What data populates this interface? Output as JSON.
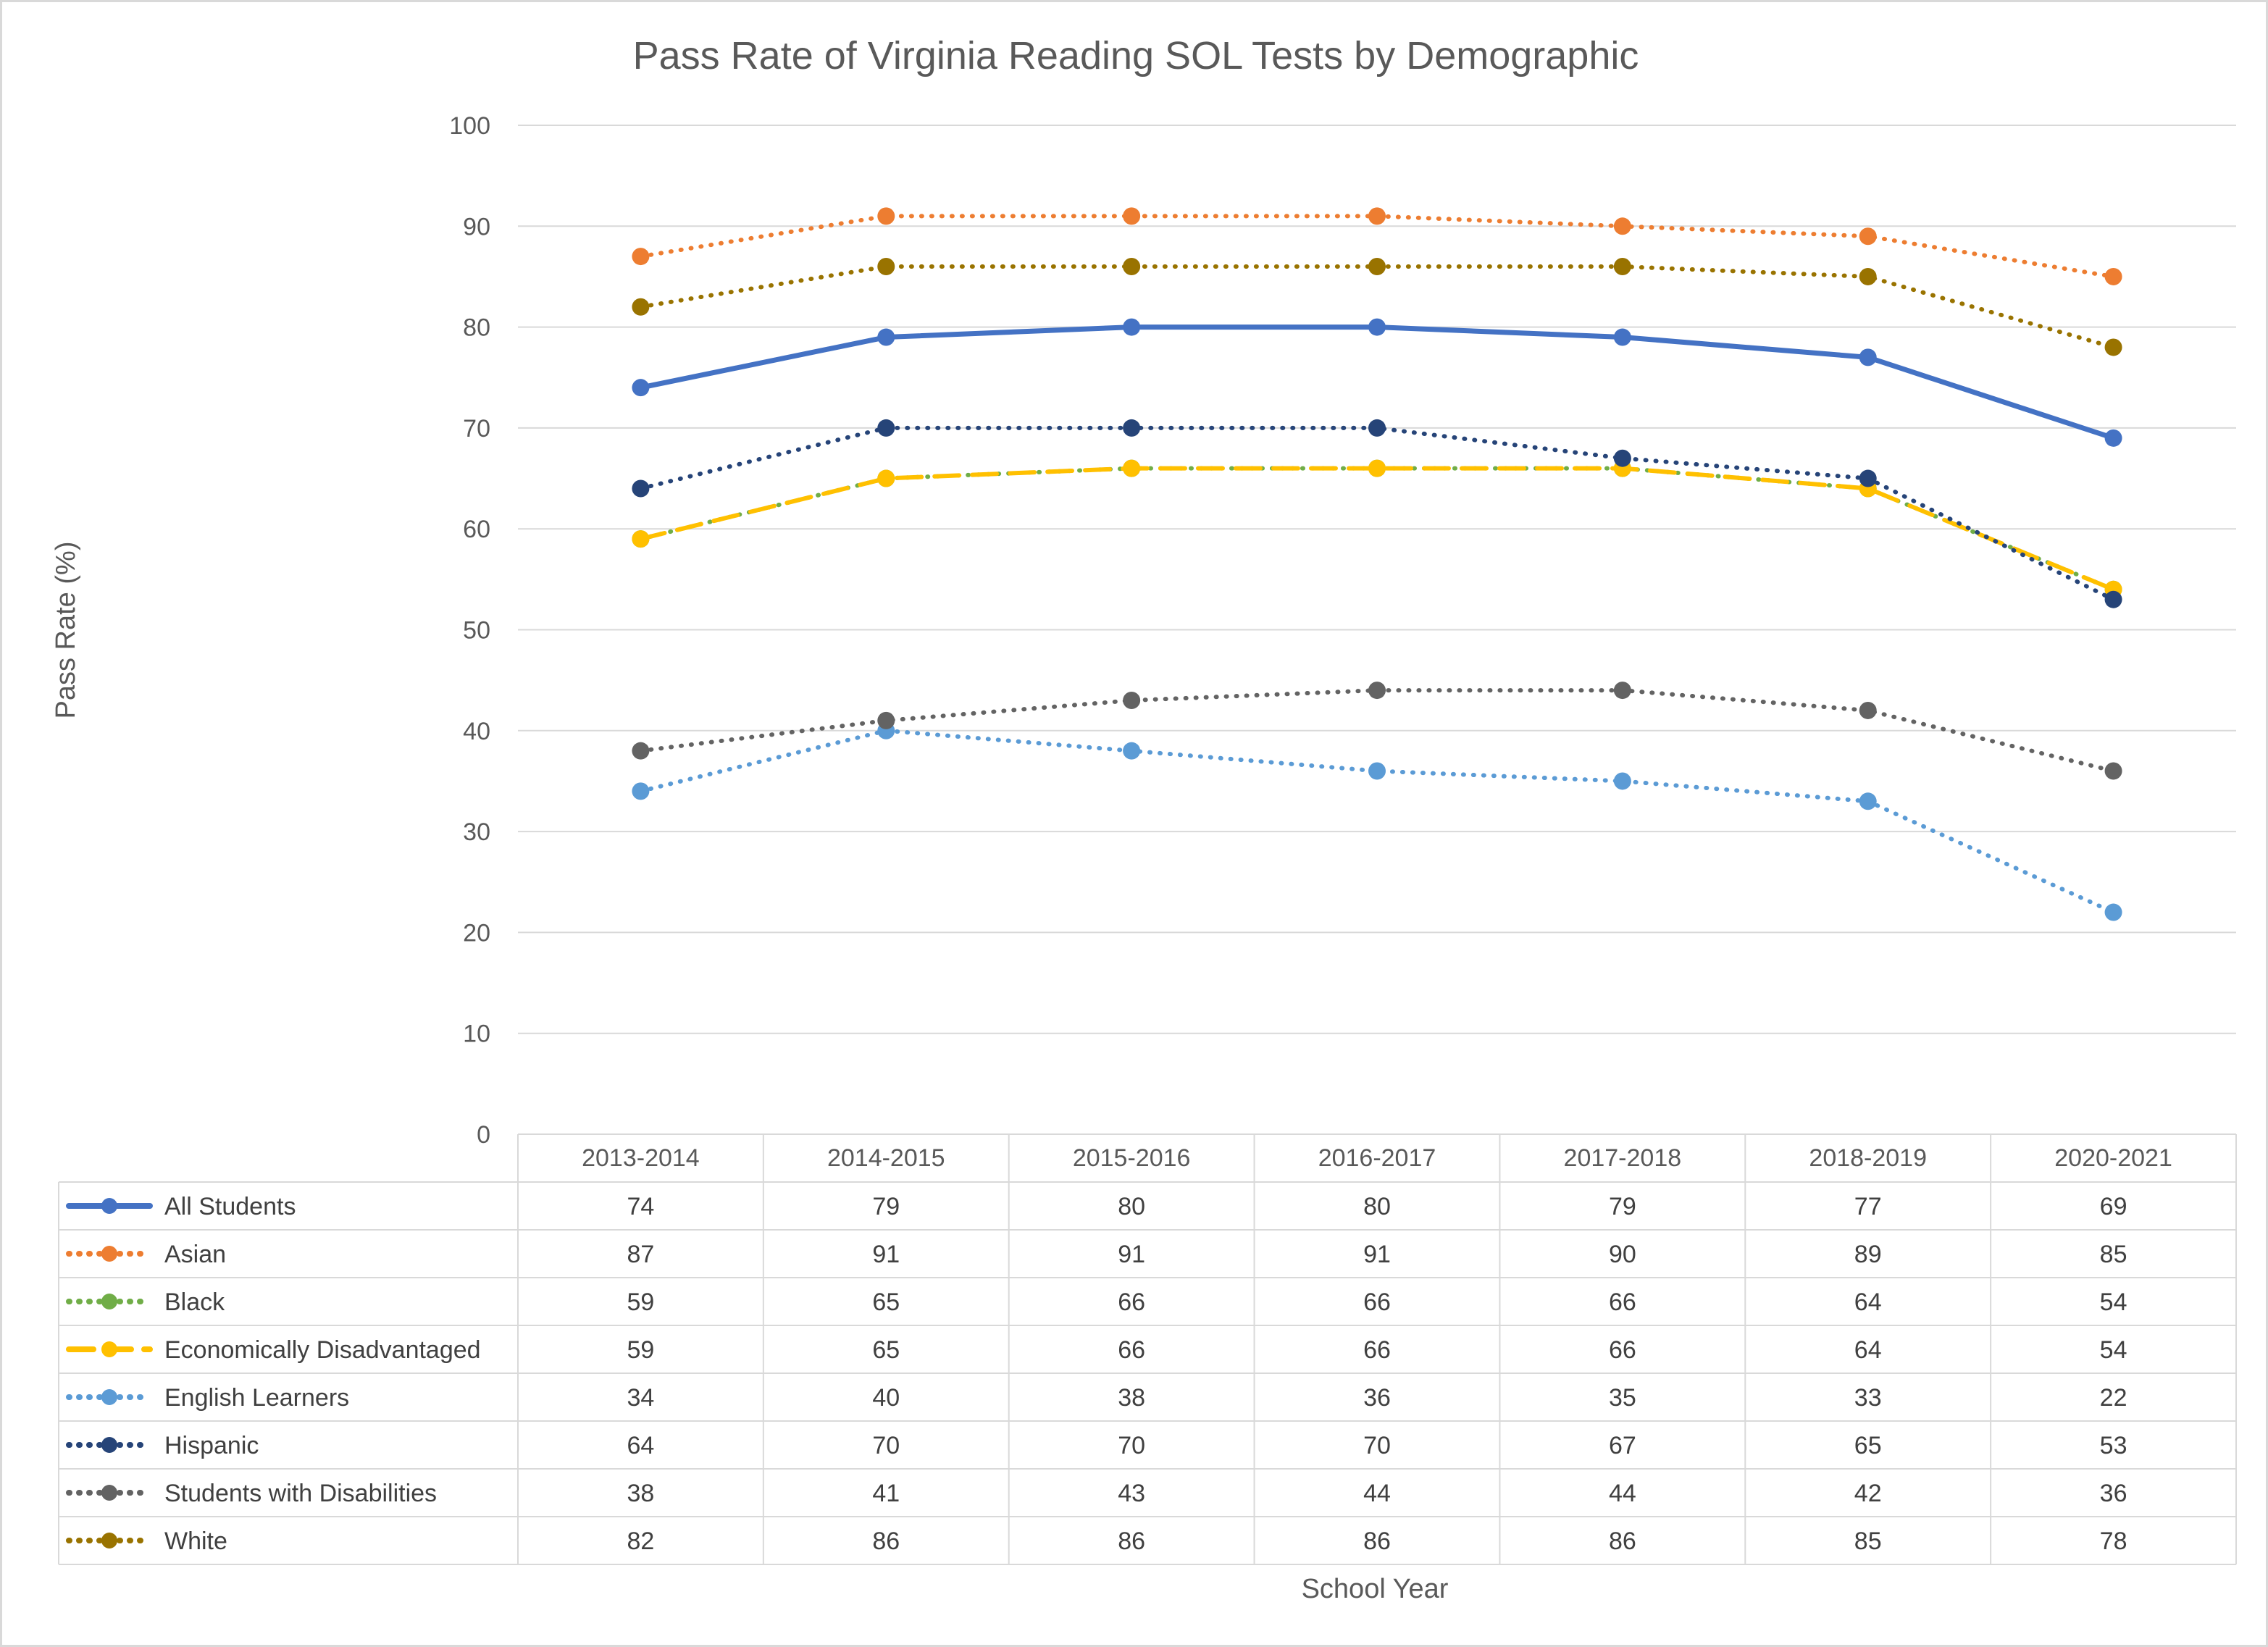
{
  "chart_data": {
    "type": "line",
    "title": "Pass Rate of Virginia Reading SOL Tests by Demographic",
    "xlabel": "School Year",
    "ylabel": "Pass Rate (%)",
    "ylim": [
      0,
      100
    ],
    "yticks": [
      0,
      10,
      20,
      30,
      40,
      50,
      60,
      70,
      80,
      90,
      100
    ],
    "grid": true,
    "legend": "data-table-below",
    "categories": [
      "2013-2014",
      "2014-2015",
      "2015-2016",
      "2016-2017",
      "2017-2018",
      "2018-2019",
      "2020-2021"
    ],
    "series": [
      {
        "name": "All Students",
        "values": [
          74,
          79,
          80,
          80,
          79,
          77,
          69
        ],
        "color": "#4472C4",
        "style": "solid"
      },
      {
        "name": "Asian",
        "values": [
          87,
          91,
          91,
          91,
          90,
          89,
          85
        ],
        "color": "#ED7D31",
        "style": "dotted"
      },
      {
        "name": "Black",
        "values": [
          59,
          65,
          66,
          66,
          66,
          64,
          54
        ],
        "color": "#70AD47",
        "style": "dotted"
      },
      {
        "name": "Economically Disadvantaged",
        "values": [
          59,
          65,
          66,
          66,
          66,
          64,
          54
        ],
        "color": "#FFC000",
        "style": "dashed"
      },
      {
        "name": "English Learners",
        "values": [
          34,
          40,
          38,
          36,
          35,
          33,
          22
        ],
        "color": "#5B9BD5",
        "style": "dotted"
      },
      {
        "name": "Hispanic",
        "values": [
          64,
          70,
          70,
          70,
          67,
          65,
          53
        ],
        "color": "#264478",
        "style": "dotted"
      },
      {
        "name": "Students with Disabilities",
        "values": [
          38,
          41,
          43,
          44,
          44,
          42,
          36
        ],
        "color": "#636363",
        "style": "dotted"
      },
      {
        "name": "White",
        "values": [
          82,
          86,
          86,
          86,
          86,
          85,
          78
        ],
        "color": "#997300",
        "style": "dotted"
      }
    ]
  }
}
